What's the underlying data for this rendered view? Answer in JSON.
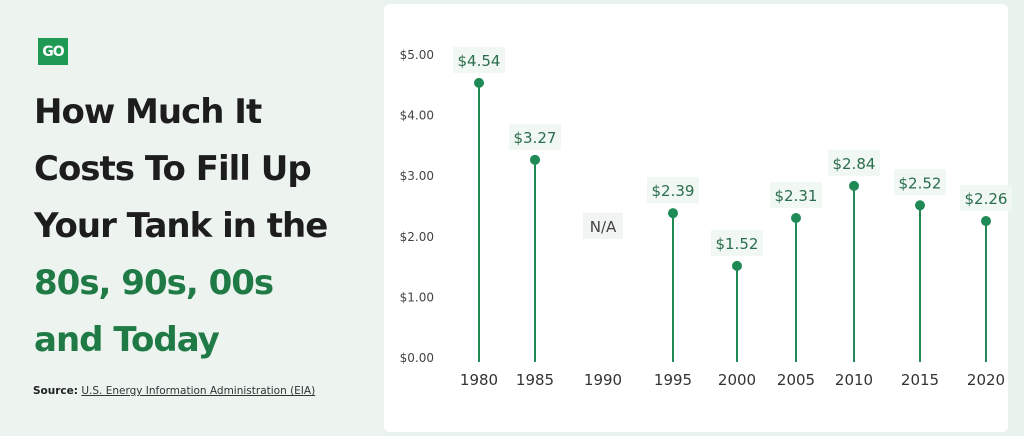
{
  "brand": {
    "logo_text": "GO",
    "accent": "#1f9a55"
  },
  "title": {
    "line1": "How Much It",
    "line2": "Costs To Fill Up",
    "line3": "Your Tank in the",
    "line4": "80s, 90s, 00s",
    "line5": "and Today"
  },
  "source": {
    "label": "Source:",
    "link": "U.S. Energy Information Administration (EIA)"
  },
  "chart_data": {
    "type": "lollipop",
    "categories": [
      "1980",
      "1985",
      "1990",
      "1995",
      "2000",
      "2005",
      "2010",
      "2015",
      "2020"
    ],
    "values": [
      4.54,
      3.27,
      null,
      2.39,
      1.52,
      2.31,
      2.84,
      2.52,
      2.26
    ],
    "data_labels": [
      "$4.54",
      "$3.27",
      "N/A",
      "$2.39",
      "$1.52",
      "$2.31",
      "$2.84",
      "$2.52",
      "$2.26"
    ],
    "yticks": [
      "$0.00",
      "$1.00",
      "$2.00",
      "$3.00",
      "$4.00",
      "$5.00"
    ],
    "ylim": [
      0,
      5
    ],
    "grid": false,
    "color": "#1f8a55"
  }
}
